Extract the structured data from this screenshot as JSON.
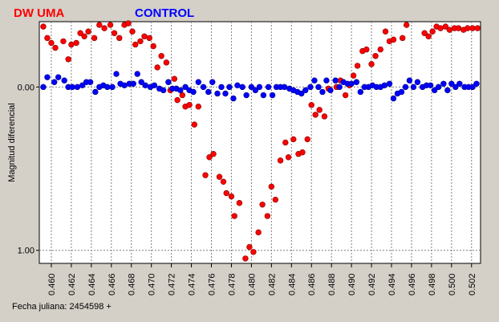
{
  "chart_data": {
    "type": "scatter",
    "xlabel": "Fecha juliana: 2454598 +",
    "ylabel": "Magnitud diferencial",
    "x_ticks": [
      "0.460",
      "0.462",
      "0.464",
      "0.466",
      "0.468",
      "0.470",
      "0.472",
      "0.474",
      "0.476",
      "0.478",
      "0.480",
      "0.482",
      "0.484",
      "0.486",
      "0.488",
      "0.490",
      "0.492",
      "0.494",
      "0.496",
      "0.498",
      "0.500",
      "0.502"
    ],
    "y_ticks": [
      "0.00",
      "1.00"
    ],
    "xlim": [
      0.4588,
      0.5029
    ],
    "ylim": [
      1.08,
      -0.4
    ],
    "y_reversed": true,
    "grid": true,
    "legend_placement": "top-left",
    "series": [
      {
        "name": "DW UMA",
        "color": "#ff0000",
        "points": [
          [
            0.4592,
            -0.37
          ],
          [
            0.4596,
            -0.3
          ],
          [
            0.46,
            -0.27
          ],
          [
            0.4604,
            -0.24
          ],
          [
            0.4612,
            -0.28
          ],
          [
            0.4617,
            -0.17
          ],
          [
            0.462,
            -0.26
          ],
          [
            0.4625,
            -0.27
          ],
          [
            0.4629,
            -0.33
          ],
          [
            0.4633,
            -0.31
          ],
          [
            0.4637,
            -0.34
          ],
          [
            0.4643,
            -0.3
          ],
          [
            0.4648,
            -0.38
          ],
          [
            0.4653,
            -0.36
          ],
          [
            0.4659,
            -0.38
          ],
          [
            0.4663,
            -0.33
          ],
          [
            0.4668,
            -0.3
          ],
          [
            0.4673,
            -0.38
          ],
          [
            0.4677,
            -0.39
          ],
          [
            0.4681,
            -0.34
          ],
          [
            0.4684,
            -0.26
          ],
          [
            0.4689,
            -0.28
          ],
          [
            0.4693,
            -0.31
          ],
          [
            0.4698,
            -0.3
          ],
          [
            0.4702,
            -0.25
          ],
          [
            0.4706,
            -0.12
          ],
          [
            0.471,
            -0.19
          ],
          [
            0.4715,
            -0.15
          ],
          [
            0.4719,
            0.02
          ],
          [
            0.4723,
            -0.05
          ],
          [
            0.4726,
            0.08
          ],
          [
            0.4731,
            0.05
          ],
          [
            0.4734,
            0.12
          ],
          [
            0.4738,
            0.11
          ],
          [
            0.4743,
            0.23
          ],
          [
            0.4747,
            0.12
          ],
          [
            0.4754,
            0.54
          ],
          [
            0.4758,
            0.43
          ],
          [
            0.4762,
            0.41
          ],
          [
            0.4768,
            0.55
          ],
          [
            0.4772,
            0.58
          ],
          [
            0.4775,
            0.65
          ],
          [
            0.478,
            0.67
          ],
          [
            0.4783,
            0.79
          ],
          [
            0.4788,
            0.71
          ],
          [
            0.4794,
            1.05
          ],
          [
            0.4798,
            0.98
          ],
          [
            0.4802,
            1.01
          ],
          [
            0.4807,
            0.89
          ],
          [
            0.4811,
            0.72
          ],
          [
            0.4816,
            0.79
          ],
          [
            0.482,
            0.61
          ],
          [
            0.4824,
            0.69
          ],
          [
            0.4829,
            0.45
          ],
          [
            0.4834,
            0.34
          ],
          [
            0.4837,
            0.43
          ],
          [
            0.4842,
            0.32
          ],
          [
            0.4847,
            0.41
          ],
          [
            0.4851,
            0.4
          ],
          [
            0.4856,
            0.32
          ],
          [
            0.486,
            0.11
          ],
          [
            0.4864,
            0.17
          ],
          [
            0.4868,
            0.14
          ],
          [
            0.4873,
            0.18
          ],
          [
            0.4877,
            0.01
          ],
          [
            0.4885,
            0.0
          ],
          [
            0.4889,
            -0.04
          ],
          [
            0.4894,
            0.05
          ],
          [
            0.4898,
            -0.01
          ],
          [
            0.4902,
            -0.07
          ],
          [
            0.4906,
            -0.13
          ],
          [
            0.4911,
            -0.22
          ],
          [
            0.4915,
            -0.23
          ],
          [
            0.492,
            -0.14
          ],
          [
            0.4924,
            -0.19
          ],
          [
            0.4929,
            -0.23
          ],
          [
            0.4934,
            -0.34
          ],
          [
            0.4938,
            -0.28
          ],
          [
            0.4942,
            -0.29
          ],
          [
            0.4947,
            -0.45
          ],
          [
            0.4951,
            -0.3
          ],
          [
            0.4955,
            -0.38
          ],
          [
            0.496,
            -0.46
          ],
          [
            0.4964,
            -0.45
          ],
          [
            0.4968,
            -0.44
          ],
          [
            0.4973,
            -0.33
          ],
          [
            0.4977,
            -0.31
          ],
          [
            0.4981,
            -0.34
          ],
          [
            0.4985,
            -0.37
          ],
          [
            0.4989,
            -0.36
          ],
          [
            0.4994,
            -0.37
          ],
          [
            0.4998,
            -0.35
          ],
          [
            0.5003,
            -0.36
          ],
          [
            0.5007,
            -0.36
          ],
          [
            0.5012,
            -0.35
          ],
          [
            0.5016,
            -0.36
          ],
          [
            0.5021,
            -0.36
          ],
          [
            0.5026,
            -0.36
          ]
        ]
      },
      {
        "name": "CONTROL",
        "color": "#0000ff",
        "points": [
          [
            0.4592,
            0.0
          ],
          [
            0.4596,
            -0.06
          ],
          [
            0.4603,
            -0.03
          ],
          [
            0.4607,
            -0.06
          ],
          [
            0.4613,
            -0.04
          ],
          [
            0.4617,
            0.0
          ],
          [
            0.4621,
            0.0
          ],
          [
            0.4626,
            0.0
          ],
          [
            0.4631,
            -0.01
          ],
          [
            0.4635,
            -0.03
          ],
          [
            0.4639,
            -0.03
          ],
          [
            0.4644,
            0.03
          ],
          [
            0.4648,
            0.0
          ],
          [
            0.4652,
            -0.01
          ],
          [
            0.4656,
            0.0
          ],
          [
            0.4661,
            0.0
          ],
          [
            0.4665,
            -0.08
          ],
          [
            0.4669,
            -0.02
          ],
          [
            0.4673,
            -0.01
          ],
          [
            0.4678,
            -0.02
          ],
          [
            0.4682,
            -0.02
          ],
          [
            0.4686,
            -0.08
          ],
          [
            0.469,
            -0.03
          ],
          [
            0.4694,
            -0.01
          ],
          [
            0.4699,
            0.0
          ],
          [
            0.4703,
            -0.01
          ],
          [
            0.4708,
            0.01
          ],
          [
            0.4712,
            0.02
          ],
          [
            0.4717,
            -0.03
          ],
          [
            0.4721,
            0.01
          ],
          [
            0.4725,
            0.01
          ],
          [
            0.4729,
            0.02
          ],
          [
            0.4734,
            0.0
          ],
          [
            0.4738,
            0.02
          ],
          [
            0.4742,
            0.03
          ],
          [
            0.4747,
            -0.03
          ],
          [
            0.4752,
            0.0
          ],
          [
            0.4757,
            0.03
          ],
          [
            0.4761,
            -0.03
          ],
          [
            0.4766,
            0.04
          ],
          [
            0.477,
            0.0
          ],
          [
            0.4774,
            0.04
          ],
          [
            0.4778,
            0.0
          ],
          [
            0.4782,
            0.07
          ],
          [
            0.4786,
            -0.01
          ],
          [
            0.4791,
            0.0
          ],
          [
            0.4795,
            0.05
          ],
          [
            0.48,
            0.0
          ],
          [
            0.4804,
            0.02
          ],
          [
            0.4808,
            0.0
          ],
          [
            0.4812,
            0.05
          ],
          [
            0.4817,
            0.0
          ],
          [
            0.4821,
            0.05
          ],
          [
            0.4825,
            0.0
          ],
          [
            0.4829,
            0.0
          ],
          [
            0.4833,
            0.0
          ],
          [
            0.4838,
            0.01
          ],
          [
            0.4842,
            0.02
          ],
          [
            0.4846,
            0.03
          ],
          [
            0.485,
            0.04
          ],
          [
            0.4854,
            0.02
          ],
          [
            0.4859,
            0.0
          ],
          [
            0.4863,
            -0.04
          ],
          [
            0.4867,
            0.0
          ],
          [
            0.4871,
            0.03
          ],
          [
            0.4875,
            -0.04
          ],
          [
            0.4879,
            0.02
          ],
          [
            0.4884,
            -0.04
          ],
          [
            0.4888,
            0.0
          ],
          [
            0.4892,
            -0.03
          ],
          [
            0.4896,
            -0.02
          ],
          [
            0.49,
            -0.02
          ],
          [
            0.4905,
            -0.03
          ],
          [
            0.4909,
            0.03
          ],
          [
            0.4913,
            0.0
          ],
          [
            0.4917,
            0.0
          ],
          [
            0.4921,
            -0.01
          ],
          [
            0.4925,
            0.0
          ],
          [
            0.4929,
            0.0
          ],
          [
            0.4933,
            -0.01
          ],
          [
            0.4938,
            -0.02
          ],
          [
            0.4942,
            0.07
          ],
          [
            0.4946,
            0.04
          ],
          [
            0.495,
            0.03
          ],
          [
            0.4954,
            0.0
          ],
          [
            0.4958,
            -0.04
          ],
          [
            0.4962,
            0.0
          ],
          [
            0.4966,
            -0.03
          ],
          [
            0.4971,
            0.0
          ],
          [
            0.4975,
            -0.01
          ],
          [
            0.4979,
            -0.01
          ],
          [
            0.4983,
            0.02
          ],
          [
            0.4987,
            0.0
          ],
          [
            0.4992,
            -0.02
          ],
          [
            0.4996,
            0.02
          ],
          [
            0.5,
            -0.02
          ],
          [
            0.5004,
            0.0
          ],
          [
            0.5008,
            -0.02
          ],
          [
            0.5013,
            0.0
          ],
          [
            0.5017,
            0.0
          ],
          [
            0.5021,
            0.0
          ],
          [
            0.5025,
            -0.02
          ]
        ]
      }
    ]
  }
}
